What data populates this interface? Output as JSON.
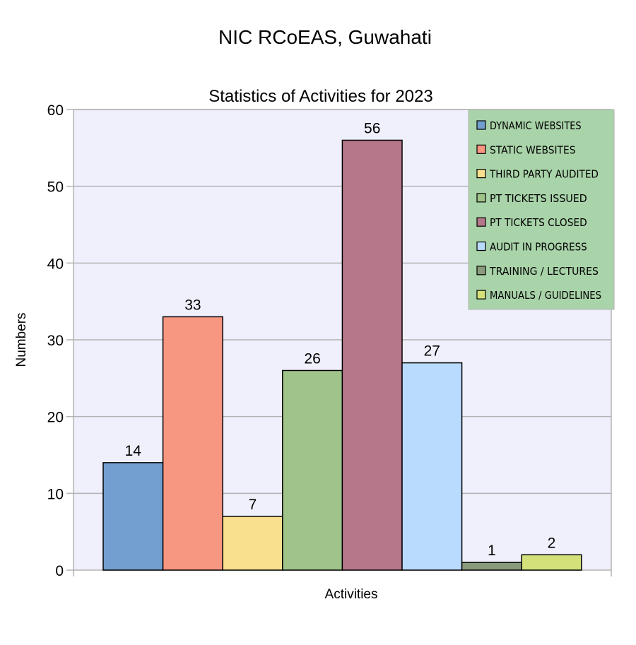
{
  "chart_data": {
    "type": "bar",
    "title": "NIC RCoEAS, Guwahati",
    "subtitle": "Statistics of Activities for 2023",
    "xlabel": "Activities",
    "ylabel": "Numbers",
    "ylim": [
      0,
      60
    ],
    "yticks": [
      0,
      10,
      20,
      30,
      40,
      50,
      60
    ],
    "grid": true,
    "legend_position": "top-right",
    "data_labels": true,
    "series": [
      {
        "name": "DYNAMIC WEBSITES",
        "value": 14,
        "label": "14",
        "color": "#729fcf"
      },
      {
        "name": "STATIC WEBSITES",
        "value": 33,
        "label": "33",
        "color": "#f79681"
      },
      {
        "name": "THIRD PARTY AUDITED",
        "value": 7,
        "label": "7",
        "color": "#f8e08e"
      },
      {
        "name": "PT TICKETS ISSUED",
        "value": 26,
        "label": "26",
        "color": "#9fc389"
      },
      {
        "name": "PT TICKETS CLOSED",
        "value": 56,
        "label": "56",
        "color": "#b6778a"
      },
      {
        "name": "AUDIT IN PROGRESS",
        "value": 27,
        "label": "27",
        "color": "#b9dbfe"
      },
      {
        "name": "TRAINING / LECTURES",
        "value": 1,
        "label": "1",
        "color": "#8a9a7c"
      },
      {
        "name": "MANUALS / GUIDELINES",
        "value": 2,
        "label": "2",
        "color": "#d4e17b"
      }
    ],
    "colors": {
      "plot_background": "#f0f0fd",
      "legend_background": "#a9d3a9",
      "gridline": "#b3b3b3"
    }
  }
}
